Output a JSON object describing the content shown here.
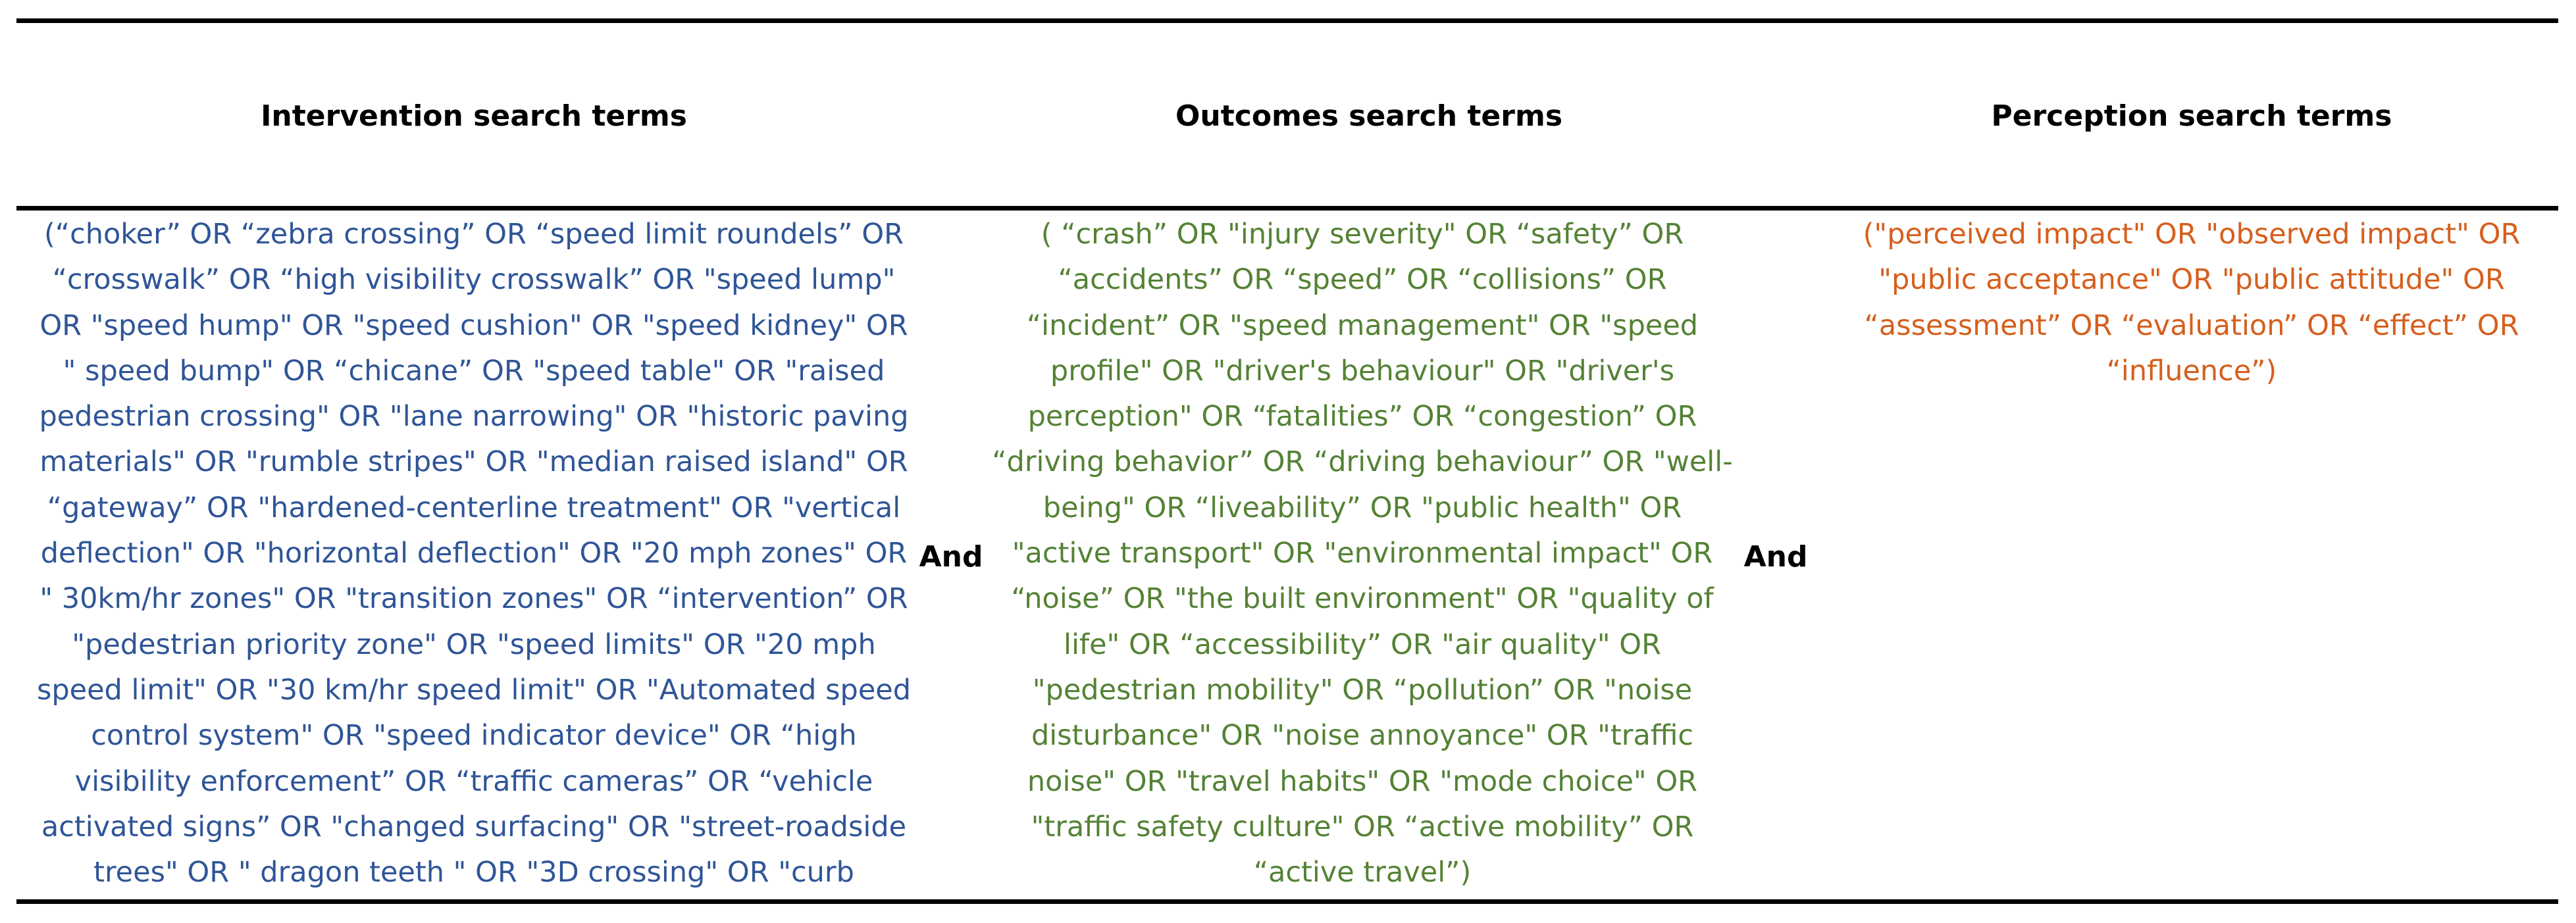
{
  "headers": {
    "intervention": "Intervention search terms",
    "outcomes": "Outcomes search terms",
    "perception": "Perception search terms"
  },
  "connectors": {
    "first": "And",
    "second": "And"
  },
  "terms": {
    "intervention": "(“choker” OR “zebra crossing” OR “speed limit roundels” OR\n“crosswalk” OR “high visibility crosswalk” OR \"speed lump\"\nOR \"speed hump\" OR \"speed cushion\" OR \"speed kidney\" OR\n\" speed bump\" OR “chicane” OR \"speed table\" OR \"raised\npedestrian crossing\" OR \"lane narrowing\" OR \"historic paving\nmaterials\" OR \"rumble stripes\" OR \"median raised island\" OR\n“gateway” OR \"hardened-centerline treatment\" OR \"vertical\ndeflection\" OR \"horizontal deflection\" OR \"20 mph zones\" OR\n\" 30km/hr zones\" OR \"transition zones\" OR “intervention” OR\n\"pedestrian priority zone\" OR \"speed limits\" OR \"20 mph\nspeed limit\" OR \"30 km/hr speed limit\" OR \"Automated speed\ncontrol system\" OR \"speed indicator device\" OR “high\nvisibility enforcement” OR “traffic cameras” OR “vehicle\nactivated signs” OR \"changed surfacing\" OR \"street-roadside\ntrees\" OR \" dragon teeth \" OR \"3D crossing\" OR \"curb",
    "outcomes": "( “crash” OR \"injury severity\" OR “safety” OR\n“accidents” OR “speed” OR “collisions” OR\n“incident” OR \"speed management\" OR \"speed\nprofile\" OR \"driver's behaviour\" OR \"driver's\nperception\" OR “fatalities” OR “congestion” OR\n“driving behavior” OR “driving behaviour” OR \"well-\nbeing\" OR “liveability” OR \"public health\" OR\n\"active transport\" OR \"environmental impact\" OR\n“noise” OR \"the built environment\" OR \"quality of\nlife\" OR “accessibility” OR \"air quality\" OR\n\"pedestrian mobility\" OR “pollution” OR \"noise\ndisturbance\" OR \"noise annoyance\" OR \"traffic\nnoise\" OR \"travel habits\" OR \"mode choice\" OR\n\"traffic safety culture\" OR “active mobility” OR\n“active travel”)",
    "perception": "(\"perceived impact\" OR \"observed impact\" OR\n\"public acceptance\" OR \"public attitude\" OR\n“assessment” OR “evaluation” OR “effect” OR\n“influence”)"
  },
  "colors": {
    "intervention_text": "#2f5597",
    "outcomes_text": "#548235",
    "perception_text": "#d65f1d",
    "rules": "#000000"
  }
}
